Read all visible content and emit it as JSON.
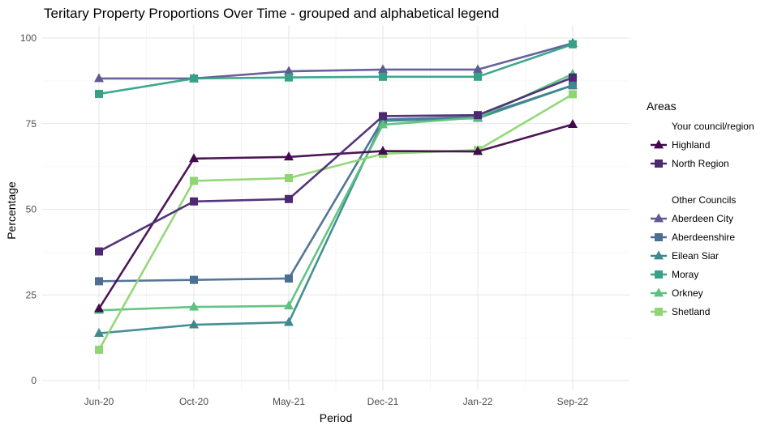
{
  "chart_data": {
    "type": "line",
    "title": "Teritary Property Proportions Over Time - grouped and alphabetical legend",
    "xlabel": "Period",
    "ylabel": "Percentage",
    "categories": [
      "Jun-20",
      "Oct-20",
      "May-21",
      "Dec-21",
      "Jan-22",
      "Sep-22"
    ],
    "ylim": [
      0,
      100
    ],
    "yticks": [
      0,
      25,
      50,
      75,
      100
    ],
    "grid": true,
    "legend": {
      "title": "Areas",
      "placement": "right",
      "groups": [
        {
          "label": "Your council/region",
          "series": [
            "Highland",
            "North Region"
          ]
        },
        {
          "label": "Other Councils",
          "series": [
            "Aberdeen City",
            "Aberdeenshire",
            "Eilean Siar",
            "Moray",
            "Orkney",
            "Shetland"
          ]
        }
      ]
    },
    "series": [
      {
        "name": "Aberdeen City",
        "marker": "triangle",
        "color": "#5e5a95",
        "values": [
          88.2,
          88.2,
          90.3,
          90.8,
          90.8,
          98.5
        ]
      },
      {
        "name": "Aberdeenshire",
        "marker": "square",
        "color": "#4a6f93",
        "values": [
          29.0,
          29.4,
          29.8,
          76.2,
          77.0,
          86.2
        ]
      },
      {
        "name": "Eilean Siar",
        "marker": "triangle",
        "color": "#3c8a8d",
        "values": [
          13.8,
          16.3,
          17.0,
          75.8,
          76.6,
          86.2
        ]
      },
      {
        "name": "Moray",
        "marker": "square",
        "color": "#35a287",
        "values": [
          83.7,
          88.2,
          88.5,
          88.7,
          88.7,
          98.2
        ]
      },
      {
        "name": "Orkney",
        "marker": "triangle",
        "color": "#5cc27d",
        "values": [
          20.5,
          21.5,
          21.8,
          74.7,
          76.8,
          89.5
        ]
      },
      {
        "name": "Shetland",
        "marker": "square",
        "color": "#8ed671",
        "values": [
          9.0,
          58.3,
          59.1,
          66.2,
          67.3,
          83.6
        ]
      },
      {
        "name": "Highland",
        "marker": "triangle",
        "color": "#430b4e",
        "values": [
          21.0,
          64.8,
          65.3,
          67.0,
          66.9,
          74.8
        ]
      },
      {
        "name": "North Region",
        "marker": "square",
        "color": "#4b2a73",
        "values": [
          37.7,
          52.3,
          53.0,
          77.2,
          77.5,
          88.5
        ]
      }
    ]
  }
}
